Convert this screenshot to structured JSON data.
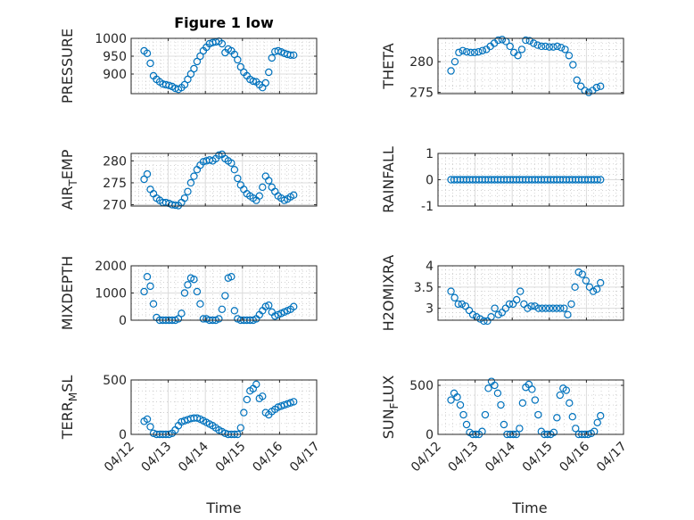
{
  "colors": {
    "marker": "#0072BD",
    "axis": "#262626",
    "grid": "#dcdcdc",
    "minor": "#b8b8b8"
  },
  "chart_data": {
    "type": "scatter",
    "title": "Figure 1 low",
    "xlabel": "Time",
    "x_unit": "days since 04/12",
    "xlim": [
      0,
      5
    ],
    "xticks": [
      0,
      1,
      2,
      3,
      4,
      5
    ],
    "xtick_labels": [
      "04/12",
      "04/13",
      "04/14",
      "04/15",
      "04/16",
      "04/17"
    ],
    "grid": "major+minor",
    "marker": "open circle",
    "panels": [
      {
        "ylabel": "PRESSURE",
        "ylim": [
          845,
          1000
        ],
        "yticks": [
          900,
          950,
          1000
        ],
        "t_range": [
          0.35,
          4.38
        ],
        "y": [
          965,
          958,
          930,
          895,
          885,
          878,
          872,
          870,
          868,
          865,
          860,
          857,
          862,
          870,
          885,
          900,
          915,
          935,
          950,
          965,
          975,
          985,
          988,
          990,
          992,
          985,
          960,
          970,
          965,
          955,
          940,
          920,
          905,
          895,
          885,
          880,
          878,
          870,
          862,
          875,
          905,
          945,
          963,
          965,
          962,
          958,
          955,
          953,
          953
        ]
      },
      {
        "ylabel": "THETA",
        "ylim": [
          274.8,
          283.8
        ],
        "yticks": [
          275,
          280
        ],
        "t_range": [
          0.35,
          4.38
        ],
        "y": [
          278.5,
          280,
          281.5,
          281.8,
          281.6,
          281.5,
          281.5,
          281.6,
          281.8,
          282,
          282.5,
          283,
          283.5,
          283.6,
          283.3,
          282.5,
          281.5,
          281,
          282,
          283.5,
          283.4,
          283,
          282.7,
          282.5,
          282.5,
          282.4,
          282.4,
          282.5,
          282.3,
          282,
          281,
          279.5,
          277,
          276,
          275.3,
          275,
          275.3,
          275.8,
          276
        ]
      },
      {
        "ylabel": "AIR_TEMP",
        "ylim": [
          269.7,
          281.7
        ],
        "yticks": [
          270,
          275,
          280
        ],
        "t_range": [
          0.35,
          4.38
        ],
        "y": [
          275.8,
          277,
          273.5,
          272.5,
          271.5,
          271,
          270.5,
          270.5,
          270.3,
          270,
          269.9,
          269.8,
          270.5,
          271.5,
          273,
          275,
          276.5,
          278,
          279,
          279.8,
          280,
          280.2,
          280,
          280.5,
          281.3,
          281.5,
          280.5,
          280,
          279.5,
          278,
          276,
          274.5,
          273.5,
          272.5,
          272,
          271.5,
          271,
          272,
          274,
          276.5,
          275.5,
          274,
          273,
          272,
          271.5,
          271,
          271.3,
          271.8,
          272.2
        ]
      },
      {
        "ylabel": "RAINFALL",
        "ylim": [
          -1,
          1
        ],
        "yticks": [
          -1,
          0,
          1
        ],
        "t_range": [
          0.35,
          4.38
        ],
        "y": [
          0,
          0,
          0,
          0,
          0,
          0,
          0,
          0,
          0,
          0,
          0,
          0,
          0,
          0,
          0,
          0,
          0,
          0,
          0,
          0,
          0,
          0,
          0,
          0,
          0,
          0,
          0,
          0,
          0,
          0,
          0,
          0,
          0,
          0,
          0,
          0,
          0,
          0,
          0,
          0,
          0,
          0,
          0,
          0,
          0,
          0,
          0,
          0,
          0
        ]
      },
      {
        "ylabel": "MIXDEPTH",
        "ylim": [
          0,
          2000
        ],
        "yticks": [
          0,
          1000,
          2000
        ],
        "t_range": [
          0.35,
          4.38
        ],
        "y": [
          1050,
          1600,
          1250,
          600,
          100,
          0,
          0,
          0,
          0,
          0,
          0,
          50,
          250,
          1000,
          1300,
          1550,
          1500,
          1050,
          600,
          50,
          50,
          0,
          0,
          0,
          50,
          400,
          900,
          1550,
          1600,
          350,
          50,
          0,
          0,
          0,
          0,
          0,
          50,
          200,
          350,
          500,
          550,
          300,
          150,
          200,
          250,
          300,
          350,
          400,
          500
        ]
      },
      {
        "ylabel": "H2OMIXRA",
        "ylim": [
          2.72,
          4
        ],
        "yticks": [
          3,
          3.5,
          4
        ],
        "t_range": [
          0.35,
          4.38
        ],
        "y": [
          3.4,
          3.25,
          3.1,
          3.1,
          3.05,
          2.95,
          2.85,
          2.8,
          2.75,
          2.7,
          2.7,
          2.8,
          3.0,
          2.85,
          2.9,
          3.0,
          3.1,
          3.1,
          3.2,
          3.4,
          3.1,
          3.0,
          3.05,
          3.05,
          3.0,
          3.0,
          3.0,
          3.0,
          3.0,
          3.0,
          3.0,
          3.0,
          2.85,
          3.1,
          3.5,
          3.85,
          3.8,
          3.65,
          3.5,
          3.4,
          3.45,
          3.6
        ]
      },
      {
        "ylabel": "TERR_MSL",
        "ylim": [
          0,
          500
        ],
        "yticks": [
          0,
          500
        ],
        "t_range": [
          0.35,
          4.38
        ],
        "y": [
          120,
          140,
          70,
          10,
          0,
          0,
          0,
          0,
          0,
          10,
          40,
          80,
          115,
          125,
          135,
          145,
          150,
          150,
          140,
          125,
          110,
          95,
          80,
          60,
          40,
          25,
          10,
          0,
          0,
          0,
          0,
          60,
          200,
          320,
          400,
          420,
          460,
          330,
          350,
          200,
          180,
          210,
          230,
          250,
          260,
          270,
          280,
          290,
          300
        ]
      },
      {
        "ylabel": "SUN_FLUX",
        "ylim": [
          0,
          555
        ],
        "yticks": [
          0,
          500
        ],
        "t_range": [
          0.35,
          4.38
        ],
        "y": [
          350,
          420,
          380,
          300,
          200,
          100,
          20,
          0,
          0,
          0,
          30,
          200,
          470,
          540,
          500,
          420,
          300,
          100,
          0,
          0,
          0,
          0,
          60,
          320,
          480,
          510,
          460,
          350,
          200,
          30,
          0,
          0,
          0,
          20,
          170,
          400,
          470,
          450,
          320,
          180,
          60,
          0,
          0,
          0,
          0,
          10,
          30,
          120,
          190
        ]
      }
    ]
  }
}
